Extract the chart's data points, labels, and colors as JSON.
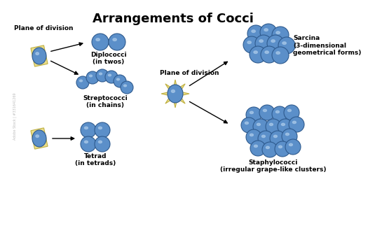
{
  "title": "Arrangements of Cocci",
  "title_fontsize": 13,
  "title_fontweight": "bold",
  "bg_color": "#ffffff",
  "cell_color": "#5b8fc9",
  "cell_edge_color": "#2e5a8e",
  "cell_highlight": "#a8c8e8",
  "plane_color": "#e8d97a",
  "plane_edge_color": "#b8a830",
  "labels": {
    "plane_of_division_1": "Plane of division",
    "plane_of_division_2": "Plane of division",
    "diplococci": "Diplococci\n(in twos)",
    "streptococci": "Streptococci\n(in chains)",
    "tetrad": "Tetrad\n(in tetrads)",
    "sarcina": "Sarcina\n(3-dimensional\ngeometrical forms)",
    "staphylococci": "Staphylococci\n(irregular grape-like clusters)"
  },
  "label_fontsize": 6.5,
  "label_fontweight": "bold",
  "text_color": "#000000",
  "watermark": "Adobe Stock | #331641269"
}
